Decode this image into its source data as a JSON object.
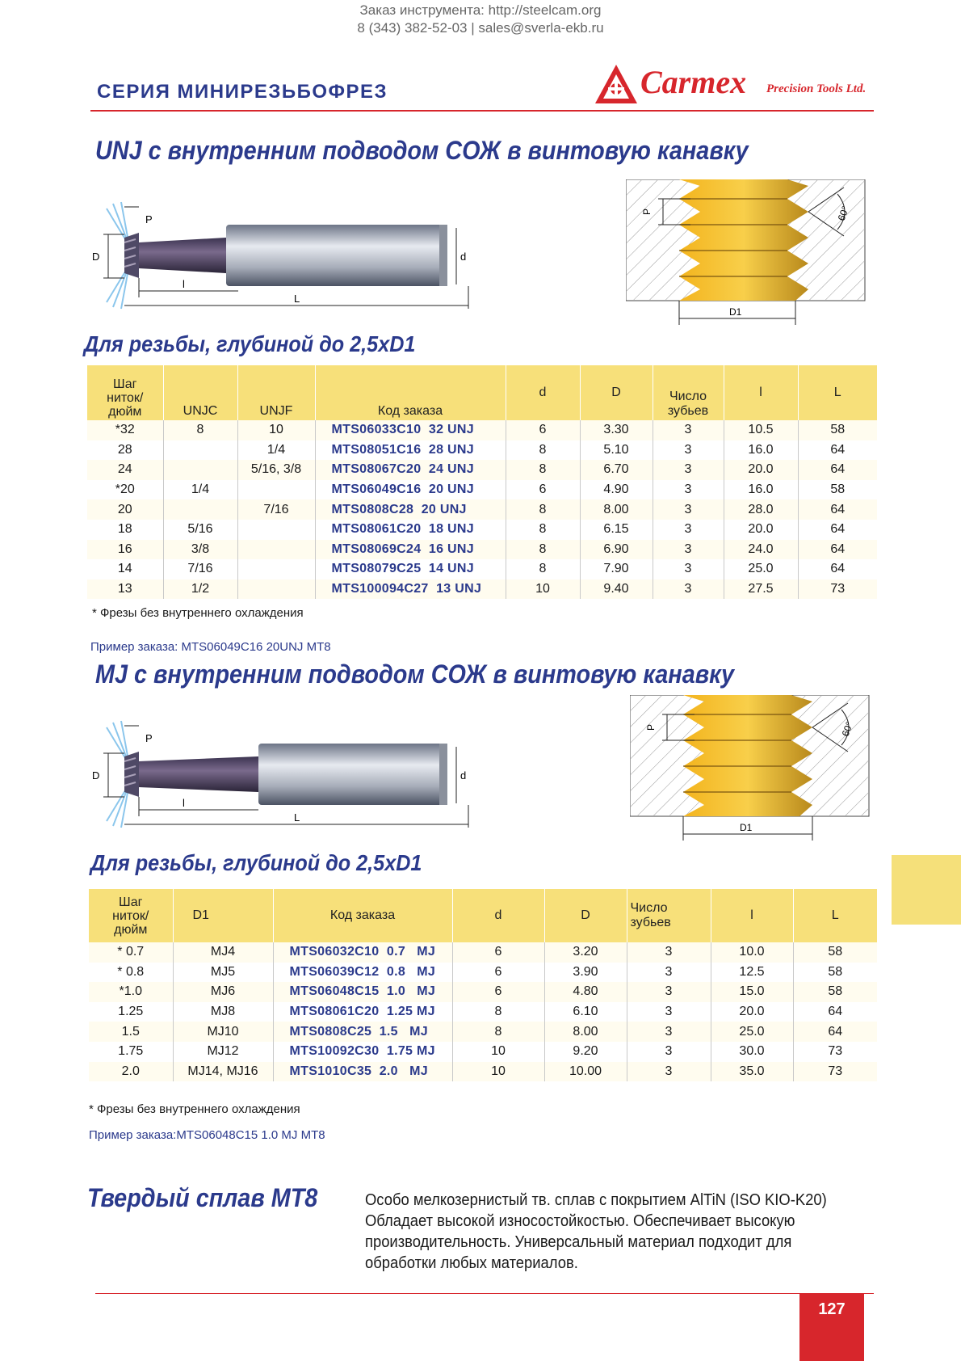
{
  "header": {
    "line1": "Заказ инструмента: http://steelcam.org",
    "line2": "8 (343) 382-52-03  |  sales@sverla-ekb.ru"
  },
  "series_title": "СЕРИЯ МИНИРЕЗЬБОФРЕЗ",
  "logo": {
    "name": "Carmex",
    "sub": "Precision Tools Ltd."
  },
  "unj": {
    "title": "UNJ с внутренним подводом СОЖ в винтовую канавку",
    "diagram_labels": {
      "P": "P",
      "D": "D",
      "d": "d",
      "l": "l",
      "L": "L",
      "D1": "D1",
      "angle": "60°"
    },
    "subtitle": "Для резьбы, глубиной до 2,5xD1",
    "headers": {
      "pitch": "Шаг\nниток/\nдюйм",
      "unjc": "UNJC",
      "unjf": "UNJF",
      "code": "Код заказа",
      "d": "d",
      "D": "D",
      "teeth": "Число\nзубьев",
      "l": "l",
      "L": "L"
    },
    "rows": [
      [
        "*32",
        "8",
        "10",
        "MTS06033C10  32 UNJ",
        "6",
        "3.30",
        "3",
        "10.5",
        "58"
      ],
      [
        "28",
        "",
        "1/4",
        "MTS08051C16  28 UNJ",
        "8",
        "5.10",
        "3",
        "16.0",
        "64"
      ],
      [
        "24",
        "",
        "5/16, 3/8",
        "MTS08067C20  24 UNJ",
        "8",
        "6.70",
        "3",
        "20.0",
        "64"
      ],
      [
        "*20",
        "1/4",
        "",
        "MTS06049C16  20 UNJ",
        "6",
        "4.90",
        "3",
        "16.0",
        "58"
      ],
      [
        "20",
        "",
        "7/16",
        "MTS0808C28  20 UNJ",
        "8",
        "8.00",
        "3",
        "28.0",
        "64"
      ],
      [
        "18",
        "5/16",
        "",
        "MTS08061C20  18 UNJ",
        "8",
        "6.15",
        "3",
        "20.0",
        "64"
      ],
      [
        "16",
        "3/8",
        "",
        "MTS08069C24  16 UNJ",
        "8",
        "6.90",
        "3",
        "24.0",
        "64"
      ],
      [
        "14",
        "7/16",
        "",
        "MTS08079C25  14 UNJ",
        "8",
        "7.90",
        "3",
        "25.0",
        "64"
      ],
      [
        "13",
        "1/2",
        "",
        "MTS100094C27  13 UNJ",
        "10",
        "9.40",
        "3",
        "27.5",
        "73"
      ]
    ],
    "note": "* Фрезы без внутреннего охлаждения",
    "order_example": "Пример заказа: MTS06049C16 20UNJ MT8"
  },
  "mj": {
    "title": "MJ с внутренним подводом СОЖ в винтовую канавку",
    "subtitle": "Для резьбы, глубиной до 2,5xD1",
    "headers": {
      "pitch": "Шаг\nниток/\nдюйм",
      "d1": "D1",
      "code": "Код заказа",
      "d": "d",
      "D": "D",
      "teeth": "Число\nзубьев",
      "l": "l",
      "L": "L"
    },
    "rows": [
      [
        "* 0.7",
        "MJ4",
        "MTS06032C10  0.7   MJ",
        "6",
        "3.20",
        "3",
        "10.0",
        "58"
      ],
      [
        "* 0.8",
        "MJ5",
        "MTS06039C12  0.8   MJ",
        "6",
        "3.90",
        "3",
        "12.5",
        "58"
      ],
      [
        "*1.0",
        "MJ6",
        "MTS06048C15  1.0   MJ",
        "6",
        "4.80",
        "3",
        "15.0",
        "58"
      ],
      [
        "1.25",
        "MJ8",
        "MTS08061C20  1.25 MJ",
        "8",
        "6.10",
        "3",
        "20.0",
        "64"
      ],
      [
        "1.5",
        "MJ10",
        "MTS0808C25  1.5   MJ",
        "8",
        "8.00",
        "3",
        "25.0",
        "64"
      ],
      [
        "1.75",
        "MJ12",
        "MTS10092C30  1.75 MJ",
        "10",
        "9.20",
        "3",
        "30.0",
        "73"
      ],
      [
        "2.0",
        "MJ14, MJ16",
        "MTS1010C35  2.0   MJ",
        "10",
        "10.00",
        "3",
        "35.0",
        "73"
      ]
    ],
    "note": "* Фрезы без внутреннего охлаждения",
    "order_label": "Пример заказа:",
    "order_value": "MTS06048C15 1.0 MJ MT8"
  },
  "material": {
    "title": "Твердый  сплав  MT8",
    "description": "Особо мелкозернистый тв. сплав с покрытием  AlTiN (ISO KIO-K20) Обладает высокой износостойкостью. Обеспечивает высокую производительность. Универсальный материал подходит для обработки любых материалов."
  },
  "page_number": "127",
  "colors": {
    "brand_red": "#d7262c",
    "title_blue": "#2b3a8c",
    "table_header": "#f7e07a"
  }
}
